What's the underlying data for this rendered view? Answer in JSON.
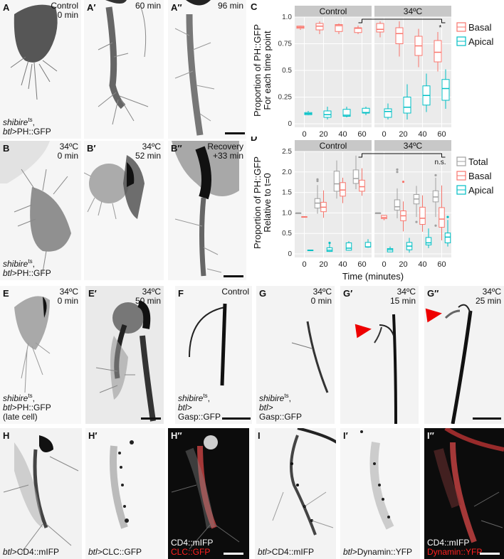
{
  "figure": {
    "panels": {
      "A": {
        "label": "A",
        "corner": "Control\n0 min",
        "genotype_italic": "shibire",
        "genotype_sup": "ts",
        "genotype_rest": ",",
        "genotype_line2_italic": "btl",
        "genotype_line2": ">PH::GFP"
      },
      "A1": {
        "label": "A′",
        "corner": "60 min"
      },
      "A2": {
        "label": "A″",
        "corner": "96 min"
      },
      "B": {
        "label": "B",
        "corner": "34ºC\n0 min",
        "genotype_italic": "shibire",
        "genotype_sup": "ts",
        "genotype_rest": ",",
        "genotype_line2_italic": "btl",
        "genotype_line2": ">PH::GFP"
      },
      "B1": {
        "label": "B′",
        "corner": "34ºC\n52 min"
      },
      "B2": {
        "label": "B″",
        "corner": "Recovery\n+33 min"
      },
      "E": {
        "label": "E",
        "corner": "34ºC\n0 min",
        "genotype_italic": "shibire",
        "genotype_sup": "ts",
        "genotype_rest": ",",
        "genotype_line2_italic": "btl",
        "genotype_line2": ">PH::GFP",
        "genotype_line3": "(late cell)"
      },
      "E1": {
        "label": "E′",
        "corner": "34ºC\n50 min"
      },
      "F": {
        "label": "F",
        "corner": "Control",
        "genotype_italic": "shibire",
        "genotype_sup": "ts",
        "genotype_rest": ",",
        "genotype_line2_italic": "btl",
        "genotype_line2": ">",
        "genotype_line3": "Gasp::GFP"
      },
      "G": {
        "label": "G",
        "corner": "34ºC\n0 min",
        "genotype_italic": "shibire",
        "genotype_sup": "ts",
        "genotype_rest": ",",
        "genotype_line2_italic": "btl",
        "genotype_line2": ">",
        "genotype_line3": "Gasp::GFP"
      },
      "G1": {
        "label": "G′",
        "corner": "34ºC\n15 min"
      },
      "G2": {
        "label": "G″",
        "corner": "34ºC\n25 min"
      },
      "H": {
        "label": "H",
        "genotype_line2_italic": "btl",
        "genotype_line2": ">CD4::mIFP"
      },
      "H1": {
        "label": "H′",
        "genotype_line2_italic": "btl",
        "genotype_line2": ">CLC::GFP"
      },
      "H2": {
        "label": "H″",
        "overlay_line1": "CD4::mIFP",
        "overlay_line2": "CLC::GFP"
      },
      "I": {
        "label": "I",
        "genotype_line2_italic": "btl",
        "genotype_line2": ">CD4::mIFP"
      },
      "I1": {
        "label": "I′",
        "genotype_line2_italic": "btl",
        "genotype_line2": ">Dynamin::YFP"
      },
      "I2": {
        "label": "I″",
        "overlay_line1": "CD4::mIFP",
        "overlay_line2": "Dynamin::YFP"
      }
    },
    "colors": {
      "basal": "#f8766d",
      "apical": "#00bfc4",
      "total": "#a0a0a0",
      "arrowhead": "#ee0000",
      "strip_bg": "#c8c8c8",
      "panel_bg": "#ebebeb"
    }
  },
  "chart_data": [
    {
      "panel": "C",
      "type": "boxplot",
      "title": "",
      "facets": [
        "Control",
        "34ºC"
      ],
      "categories": [
        "0",
        "20",
        "40",
        "60"
      ],
      "xlabel": "",
      "ylabel": "Proportion of PH::GFP\nFor each time point",
      "ylim": [
        0,
        1.0
      ],
      "yticks": [
        "0",
        "0.25",
        "0.5",
        "0.75",
        "1.0"
      ],
      "legend": [
        "Basal",
        "Apical"
      ],
      "legend_position": "right",
      "grid": true,
      "annotation": {
        "text": "*",
        "between": [
          "Control 60",
          "34ºC 60"
        ]
      },
      "series": [
        {
          "name": "Basal",
          "facet": "Control",
          "boxes": [
            {
              "x": "0",
              "min": 0.88,
              "q1": 0.895,
              "median": 0.905,
              "q3": 0.915,
              "max": 0.92
            },
            {
              "x": "20",
              "min": 0.84,
              "q1": 0.88,
              "median": 0.915,
              "q3": 0.94,
              "max": 0.96
            },
            {
              "x": "40",
              "min": 0.84,
              "q1": 0.865,
              "median": 0.92,
              "q3": 0.93,
              "max": 0.94
            },
            {
              "x": "60",
              "min": 0.84,
              "q1": 0.855,
              "median": 0.895,
              "q3": 0.9,
              "max": 0.92
            }
          ]
        },
        {
          "name": "Apical",
          "facet": "Control",
          "boxes": [
            {
              "x": "0",
              "min": 0.08,
              "q1": 0.085,
              "median": 0.095,
              "q3": 0.105,
              "max": 0.12
            },
            {
              "x": "20",
              "min": 0.04,
              "q1": 0.06,
              "median": 0.085,
              "q3": 0.12,
              "max": 0.16
            },
            {
              "x": "40",
              "min": 0.06,
              "q1": 0.07,
              "median": 0.08,
              "q3": 0.135,
              "max": 0.16
            },
            {
              "x": "60",
              "min": 0.08,
              "q1": 0.1,
              "median": 0.105,
              "q3": 0.145,
              "max": 0.16
            }
          ]
        },
        {
          "name": "Basal",
          "facet": "34ºC",
          "boxes": [
            {
              "x": "0",
              "min": 0.81,
              "q1": 0.86,
              "median": 0.885,
              "q3": 0.94,
              "max": 0.96
            },
            {
              "x": "20",
              "min": 0.63,
              "q1": 0.75,
              "median": 0.845,
              "q3": 0.9,
              "max": 0.96
            },
            {
              "x": "40",
              "min": 0.53,
              "q1": 0.64,
              "median": 0.73,
              "q3": 0.82,
              "max": 0.89
            },
            {
              "x": "60",
              "min": 0.49,
              "q1": 0.58,
              "median": 0.67,
              "q3": 0.78,
              "max": 0.86
            }
          ]
        },
        {
          "name": "Apical",
          "facet": "34ºC",
          "boxes": [
            {
              "x": "0",
              "min": 0.04,
              "q1": 0.06,
              "median": 0.115,
              "q3": 0.14,
              "max": 0.19
            },
            {
              "x": "20",
              "min": 0.04,
              "q1": 0.1,
              "median": 0.155,
              "q3": 0.25,
              "max": 0.37
            },
            {
              "x": "40",
              "min": 0.11,
              "q1": 0.175,
              "median": 0.265,
              "q3": 0.355,
              "max": 0.47
            },
            {
              "x": "60",
              "min": 0.14,
              "q1": 0.22,
              "median": 0.33,
              "q3": 0.415,
              "max": 0.51
            }
          ]
        }
      ]
    },
    {
      "panel": "D",
      "type": "boxplot",
      "title": "",
      "facets": [
        "Control",
        "34ºC"
      ],
      "categories": [
        "0",
        "20",
        "40",
        "60"
      ],
      "xlabel": "Time (minutes)",
      "ylabel": "Proportion of PH::GFP\nRelative to t=0",
      "ylim": [
        0,
        2.5
      ],
      "yticks": [
        "0",
        "0.5",
        "1.0",
        "1.5",
        "2.0",
        "2.5"
      ],
      "legend": [
        "Total",
        "Basal",
        "Apical"
      ],
      "legend_position": "right",
      "grid": true,
      "annotation": {
        "text": "n.s.",
        "between": [
          "Control 60",
          "34ºC 60"
        ]
      },
      "series": [
        {
          "name": "Total",
          "facet": "Control",
          "boxes": [
            {
              "x": "0",
              "min": 1.0,
              "q1": 1.0,
              "median": 1.0,
              "q3": 1.0,
              "max": 1.0
            },
            {
              "x": "20",
              "min": 0.98,
              "q1": 1.12,
              "median": 1.24,
              "q3": 1.35,
              "max": 1.68,
              "outliers": [
                1.78,
                1.82
              ]
            },
            {
              "x": "40",
              "min": 1.35,
              "q1": 1.53,
              "median": 1.71,
              "q3": 2.02,
              "max": 2.28
            },
            {
              "x": "60",
              "min": 1.58,
              "q1": 1.72,
              "median": 1.84,
              "q3": 2.05,
              "max": 2.4
            }
          ]
        },
        {
          "name": "Basal",
          "facet": "Control",
          "boxes": [
            {
              "x": "0",
              "min": 0.9,
              "q1": 0.9,
              "median": 0.905,
              "q3": 0.91,
              "max": 0.91
            },
            {
              "x": "20",
              "min": 0.88,
              "q1": 1.03,
              "median": 1.14,
              "q3": 1.26,
              "max": 1.55
            },
            {
              "x": "40",
              "min": 1.24,
              "q1": 1.41,
              "median": 1.56,
              "q3": 1.74,
              "max": 1.86
            },
            {
              "x": "60",
              "min": 1.42,
              "q1": 1.53,
              "median": 1.64,
              "q3": 1.8,
              "max": 2.09
            }
          ]
        },
        {
          "name": "Apical",
          "facet": "Control",
          "boxes": [
            {
              "x": "0",
              "min": 0.08,
              "q1": 0.085,
              "median": 0.09,
              "q3": 0.095,
              "max": 0.1
            },
            {
              "x": "20",
              "min": 0.05,
              "q1": 0.06,
              "median": 0.09,
              "q3": 0.15,
              "max": 0.26,
              "outliers": [
                0.27
              ]
            },
            {
              "x": "40",
              "min": 0.08,
              "q1": 0.09,
              "median": 0.14,
              "q3": 0.27,
              "max": 0.31
            },
            {
              "x": "60",
              "min": 0.15,
              "q1": 0.17,
              "median": 0.17,
              "q3": 0.28,
              "max": 0.36
            }
          ]
        },
        {
          "name": "Total",
          "facet": "34ºC",
          "boxes": [
            {
              "x": "0",
              "min": 1.0,
              "q1": 1.0,
              "median": 1.0,
              "q3": 1.0,
              "max": 1.0
            },
            {
              "x": "20",
              "min": 0.87,
              "q1": 1.07,
              "median": 1.15,
              "q3": 1.32,
              "max": 1.6,
              "outliers": [
                2.0,
                2.06
              ]
            },
            {
              "x": "40",
              "min": 0.9,
              "q1": 1.22,
              "median": 1.34,
              "q3": 1.45,
              "max": 1.66,
              "outliers": [
                0.78
              ]
            },
            {
              "x": "60",
              "min": 0.9,
              "q1": 1.27,
              "median": 1.39,
              "q3": 1.54,
              "max": 1.86,
              "outliers": [
                0.69,
                1.92
              ]
            }
          ]
        },
        {
          "name": "Basal",
          "facet": "34ºC",
          "boxes": [
            {
              "x": "0",
              "min": 0.82,
              "q1": 0.86,
              "median": 0.89,
              "q3": 0.94,
              "max": 0.95
            },
            {
              "x": "20",
              "min": 0.55,
              "q1": 0.81,
              "median": 0.93,
              "q3": 1.05,
              "max": 1.28,
              "outliers": [
                1.76
              ]
            },
            {
              "x": "40",
              "min": 0.54,
              "q1": 0.72,
              "median": 0.87,
              "q3": 1.14,
              "max": 1.43
            },
            {
              "x": "60",
              "min": 0.33,
              "q1": 0.65,
              "median": 0.85,
              "q3": 1.13,
              "max": 1.67
            }
          ]
        },
        {
          "name": "Apical",
          "facet": "34ºC",
          "boxes": [
            {
              "x": "0",
              "min": 0.05,
              "q1": 0.05,
              "median": 0.1,
              "q3": 0.13,
              "max": 0.18
            },
            {
              "x": "20",
              "min": 0.03,
              "q1": 0.1,
              "median": 0.19,
              "q3": 0.28,
              "max": 0.39
            },
            {
              "x": "40",
              "min": 0.14,
              "q1": 0.22,
              "median": 0.27,
              "q3": 0.4,
              "max": 0.62
            },
            {
              "x": "60",
              "min": 0.18,
              "q1": 0.27,
              "median": 0.41,
              "q3": 0.51,
              "max": 0.83,
              "outliers": [
                0.9
              ]
            }
          ]
        }
      ]
    }
  ],
  "charts": {
    "C": {
      "label": "C",
      "facet1": "Control",
      "facet2": "34ºC",
      "ylabel1": "Proportion of PH::GFP",
      "ylabel2": "For each time point",
      "yticks": [
        "0",
        "0.25",
        "0.5",
        "0.75",
        "1.0"
      ],
      "xticks": [
        "0",
        "20",
        "40",
        "60"
      ],
      "sig": "*",
      "legend": [
        "Basal",
        "Apical"
      ]
    },
    "D": {
      "label": "D",
      "facet1": "Control",
      "facet2": "34ºC",
      "ylabel1": "Proportion of PH::GFP",
      "ylabel2": "Relative to t=0",
      "yticks": [
        "0",
        "0.5",
        "1.0",
        "1.5",
        "2.0",
        "2.5"
      ],
      "xticks": [
        "0",
        "20",
        "40",
        "60"
      ],
      "xlabel": "Time (minutes)",
      "sig": "n.s.",
      "legend": [
        "Total",
        "Basal",
        "Apical"
      ]
    }
  }
}
